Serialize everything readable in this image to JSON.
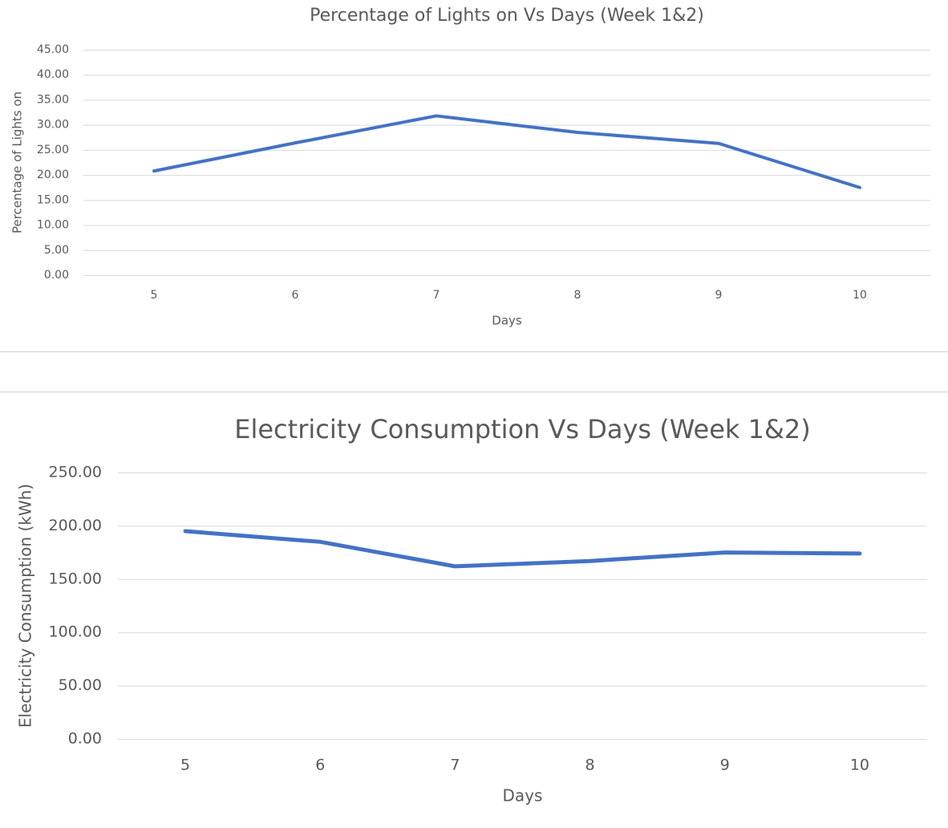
{
  "chart_data": [
    {
      "type": "line",
      "title": "Percentage of Lights on Vs Days (Week 1&2)",
      "x_label": "Days",
      "y_label": "Percentage of Lights on",
      "categories": [
        "5",
        "6",
        "7",
        "8",
        "9",
        "10"
      ],
      "series": [
        {
          "name": "Percentage of Lights on",
          "color": "#4472c4",
          "values": [
            20.8,
            26.4,
            31.8,
            28.5,
            26.3,
            17.5
          ]
        }
      ],
      "ylim": [
        0,
        45
      ],
      "yticks": [
        {
          "value": 0,
          "label": "0.00"
        },
        {
          "value": 5,
          "label": "5.00"
        },
        {
          "value": 10,
          "label": "10.00"
        },
        {
          "value": 15,
          "label": "15.00"
        },
        {
          "value": 20,
          "label": "20.00"
        },
        {
          "value": 25,
          "label": "25.00"
        },
        {
          "value": 30,
          "label": "30.00"
        },
        {
          "value": 35,
          "label": "35.00"
        },
        {
          "value": 40,
          "label": "40.00"
        },
        {
          "value": 45,
          "label": "45.00"
        }
      ],
      "grid": true
    },
    {
      "type": "line",
      "title": "Electricity Consumption Vs Days (Week 1&2)",
      "x_label": "Days",
      "y_label": "Electricity Consumption (kWh)",
      "categories": [
        "5",
        "6",
        "7",
        "8",
        "9",
        "10"
      ],
      "series": [
        {
          "name": "Electricity Consumption (kWh)",
          "color": "#4472c4",
          "values": [
            195,
            185,
            162,
            167,
            175,
            174
          ]
        }
      ],
      "ylim": [
        0,
        250
      ],
      "yticks": [
        {
          "value": 0,
          "label": "0.00"
        },
        {
          "value": 50,
          "label": "50.00"
        },
        {
          "value": 100,
          "label": "100.00"
        },
        {
          "value": 150,
          "label": "150.00"
        },
        {
          "value": 200,
          "label": "200.00"
        },
        {
          "value": 250,
          "label": "250.00"
        }
      ],
      "grid": true
    }
  ]
}
